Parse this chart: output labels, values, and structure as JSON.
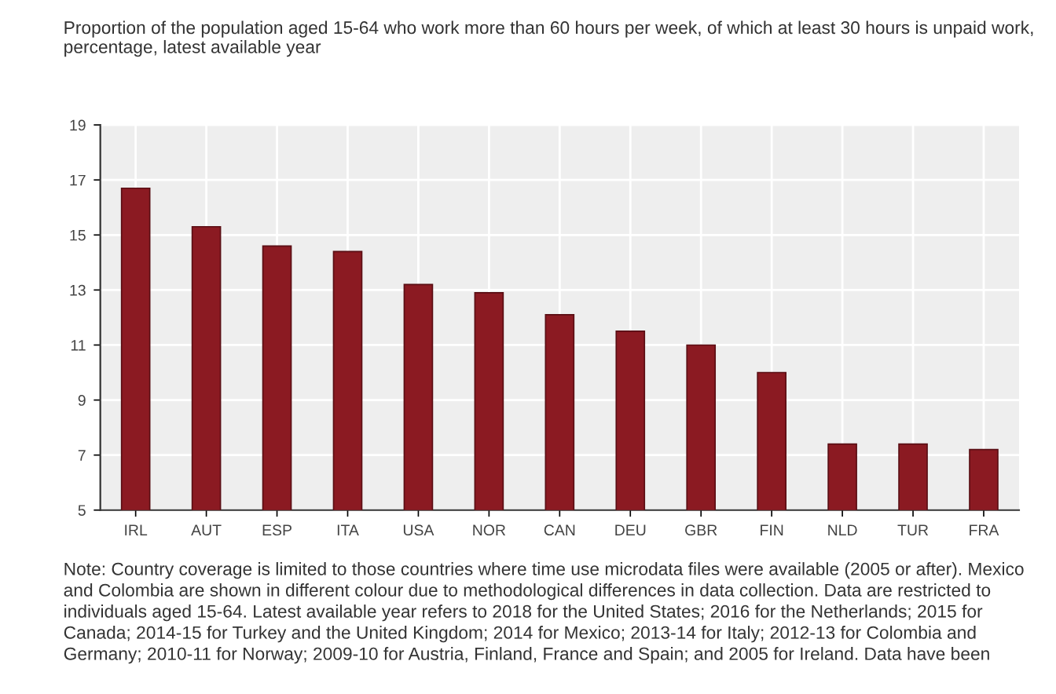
{
  "chart_data": {
    "type": "bar",
    "title": "Proportion of the population aged 15-64 who work more than 60 hours per week, of which at least 30 hours is unpaid work, percentage, latest available year",
    "categories": [
      "IRL",
      "AUT",
      "ESP",
      "ITA",
      "USA",
      "NOR",
      "CAN",
      "DEU",
      "GBR",
      "FIN",
      "NLD",
      "TUR",
      "FRA"
    ],
    "values": [
      16.7,
      15.3,
      14.6,
      14.4,
      13.2,
      12.9,
      12.1,
      11.5,
      11.0,
      10.0,
      7.4,
      7.4,
      7.2
    ],
    "color": "#8b1a22",
    "ylim": [
      5,
      19
    ],
    "yticks": [
      5,
      7,
      9,
      11,
      13,
      15,
      17,
      19
    ],
    "grid": true,
    "annotations": [
      "Note: Country coverage is limited to those countries where time use microdata files were available (2005 or after). Mexico and Colombia are shown in different colour due to methodological differences in data collection. Data are restricted to individuals aged 15-64. Latest available year refers to 2018 for the United States; 2016 for the Netherlands; 2015 for Canada; 2014-15 for Turkey and the United Kingdom; 2014 for Mexico; 2013-14 for Italy; 2012-13 for Colombia and Germany; 2010-11 for Norway; 2009-10 for Austria, Finland, France and Spain; and 2005 for Ireland. Data have been"
    ]
  }
}
